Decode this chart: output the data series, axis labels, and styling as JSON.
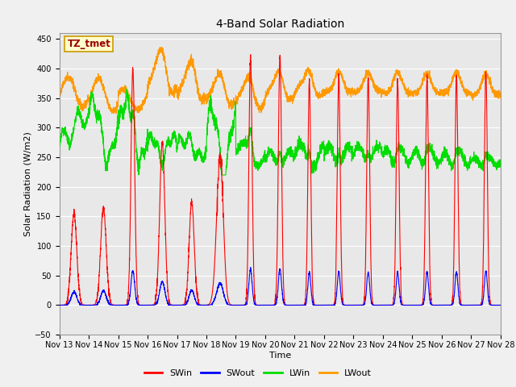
{
  "title": "4-Band Solar Radiation",
  "xlabel": "Time",
  "ylabel": "Solar Radiation (W/m2)",
  "ylim": [
    -50,
    460
  ],
  "yticks": [
    -50,
    0,
    50,
    100,
    150,
    200,
    250,
    300,
    350,
    400,
    450
  ],
  "bg_color": "#f0f0f0",
  "plot_bg_color": "#e8e8e8",
  "legend_labels": [
    "SWin",
    "SWout",
    "LWin",
    "LWout"
  ],
  "legend_colors": [
    "#ff0000",
    "#0000ff",
    "#00dd00",
    "#ff9900"
  ],
  "annotation_text": "TZ_tmet",
  "annotation_bg": "#ffffcc",
  "annotation_border": "#cc9900",
  "annotation_text_color": "#990000",
  "grid_color": "#ffffff",
  "colors": {
    "SWin": "#ff0000",
    "SWout": "#0000ff",
    "LWin": "#00dd00",
    "LWout": "#ff9900"
  },
  "title_fontsize": 10,
  "axis_label_fontsize": 8,
  "tick_fontsize": 7,
  "legend_fontsize": 8
}
